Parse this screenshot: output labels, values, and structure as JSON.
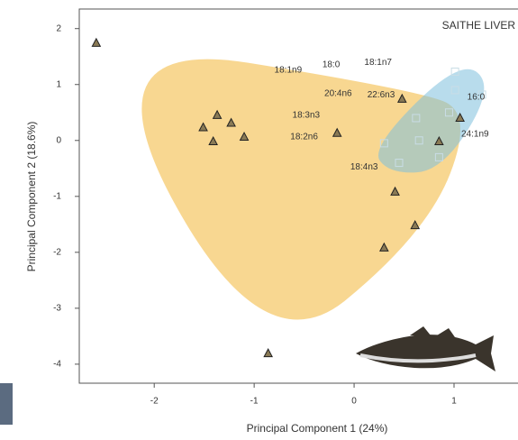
{
  "chart_data": {
    "type": "scatter",
    "title": "SAITHE LIVER",
    "x_label": "Principal Component 1 (24%)",
    "y_label": "Principal Component 2 (18.6%)",
    "xlim": [
      -2.75,
      1.64
    ],
    "ylim": [
      -4.34,
      2.35
    ],
    "xticks": [
      -2,
      -1,
      0,
      1
    ],
    "yticks": [
      2,
      1,
      0,
      -1,
      -2,
      -3,
      -4
    ],
    "series": [
      {
        "color": "#f2b736",
        "marker": "triangle",
        "hull": true,
        "x": [
          -2.58,
          -1.37,
          -1.51,
          -1.41,
          -1.23,
          -1.1,
          -0.17,
          0.48,
          0.85,
          1.06,
          0.41,
          0.61,
          0.3,
          -0.86
        ],
        "values": [
          1.74,
          0.45,
          0.23,
          -0.02,
          0.31,
          0.06,
          0.13,
          0.74,
          -0.02,
          0.4,
          -0.92,
          -1.52,
          -1.92,
          -3.81
        ]
      },
      {
        "color": "#7dbfdc",
        "marker": "square",
        "hull": true,
        "x": [
          0.65,
          0.95,
          1.01,
          1.01,
          1.28,
          0.62,
          0.3,
          0.45,
          0.85
        ],
        "values": [
          0.0,
          0.5,
          1.23,
          0.9,
          0.82,
          0.4,
          -0.05,
          -0.4,
          -0.3
        ]
      }
    ],
    "annotations": [
      {
        "text": "18:1n9",
        "x": -0.66,
        "y": 1.26
      },
      {
        "text": "18:0",
        "x": -0.23,
        "y": 1.35
      },
      {
        "text": "18:1n7",
        "x": 0.24,
        "y": 1.39
      },
      {
        "text": "20:4n6",
        "x": -0.16,
        "y": 0.84
      },
      {
        "text": "22:6n3",
        "x": 0.27,
        "y": 0.81
      },
      {
        "text": "16:0",
        "x": 1.22,
        "y": 0.77
      },
      {
        "text": "18:3n3",
        "x": -0.48,
        "y": 0.45
      },
      {
        "text": "18:2n6",
        "x": -0.5,
        "y": 0.06
      },
      {
        "text": "24:1n9",
        "x": 1.21,
        "y": 0.11
      },
      {
        "text": "18:4n3",
        "x": 0.1,
        "y": -0.48
      }
    ]
  }
}
